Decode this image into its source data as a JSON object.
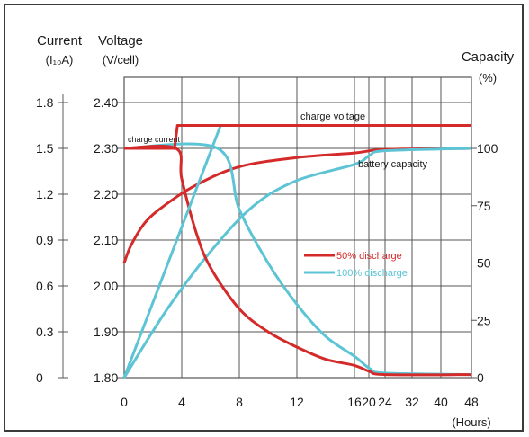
{
  "chart_data": {
    "type": "line",
    "axes": {
      "current": {
        "title": "Current",
        "unit": "(I₁₀A)",
        "ticks": [
          "0",
          "0.3",
          "0.6",
          "0.9",
          "1.2",
          "1.5",
          "1.8"
        ]
      },
      "voltage": {
        "title": "Voltage",
        "unit": "(V/cell)",
        "ticks": [
          "1.80",
          "1.90",
          "2.00",
          "2.10",
          "2.20",
          "2.30",
          "2.40"
        ],
        "ylim": [
          1.8,
          2.45
        ]
      },
      "capacity": {
        "title": "Capacity",
        "unit": "(%)",
        "ticks": [
          "0",
          "25",
          "50",
          "75",
          "100"
        ]
      },
      "x": {
        "ticks": [
          "0",
          "4",
          "8",
          "12",
          "16",
          "20",
          "24",
          "32",
          "40",
          "48"
        ],
        "unit": "(Hours)"
      }
    },
    "annotations": {
      "charge_voltage": "charge voltage",
      "charge_current": "charge current",
      "battery_capacity": "battery capacity"
    },
    "legend": {
      "position": "center-right",
      "entries": [
        {
          "name": "50% discharge",
          "color": "#d42a2a"
        },
        {
          "name": "100% discharge",
          "color": "#5cc4d4"
        }
      ]
    },
    "series": [
      {
        "name": "50% discharge",
        "curve": "charge voltage",
        "unit": "V/cell",
        "points": [
          [
            0,
            2.3
          ],
          [
            3.5,
            2.3
          ],
          [
            3.7,
            2.35
          ],
          [
            48,
            2.35
          ]
        ]
      },
      {
        "name": "100% discharge",
        "curve": "charge voltage",
        "unit": "V/cell",
        "points": [
          [
            0,
            1.8
          ],
          [
            6.7,
            2.35
          ],
          [
            48,
            2.35
          ]
        ]
      },
      {
        "name": "50% discharge",
        "curve": "charge current",
        "unit": "I10A",
        "points": [
          [
            0,
            1.5
          ],
          [
            3.6,
            1.5
          ],
          [
            4,
            1.3
          ],
          [
            5,
            0.95
          ],
          [
            6,
            0.72
          ],
          [
            8,
            0.45
          ],
          [
            10,
            0.3
          ],
          [
            12,
            0.2
          ],
          [
            14,
            0.12
          ],
          [
            16,
            0.08
          ],
          [
            20,
            0.04
          ],
          [
            24,
            0.02
          ],
          [
            48,
            0.02
          ]
        ]
      },
      {
        "name": "100% discharge",
        "curve": "charge current",
        "unit": "I10A",
        "points": [
          [
            0,
            1.5
          ],
          [
            6.5,
            1.5
          ],
          [
            8,
            1.1
          ],
          [
            10,
            0.75
          ],
          [
            12,
            0.48
          ],
          [
            14,
            0.27
          ],
          [
            16,
            0.14
          ],
          [
            20,
            0.06
          ],
          [
            24,
            0.03
          ],
          [
            48,
            0.02
          ]
        ]
      },
      {
        "name": "50% discharge",
        "curve": "battery capacity",
        "unit": "%",
        "points": [
          [
            0,
            50
          ],
          [
            0.5,
            58
          ],
          [
            1.5,
            68
          ],
          [
            3,
            76
          ],
          [
            5,
            84
          ],
          [
            8,
            92
          ],
          [
            12,
            96
          ],
          [
            16,
            98
          ],
          [
            24,
            99.5
          ],
          [
            48,
            100
          ]
        ]
      },
      {
        "name": "100% discharge",
        "curve": "battery capacity",
        "unit": "%",
        "points": [
          [
            0,
            0
          ],
          [
            3,
            30
          ],
          [
            6,
            55
          ],
          [
            9,
            75
          ],
          [
            12,
            86
          ],
          [
            16,
            93
          ],
          [
            20,
            97
          ],
          [
            24,
            99
          ],
          [
            48,
            100
          ]
        ]
      }
    ]
  }
}
